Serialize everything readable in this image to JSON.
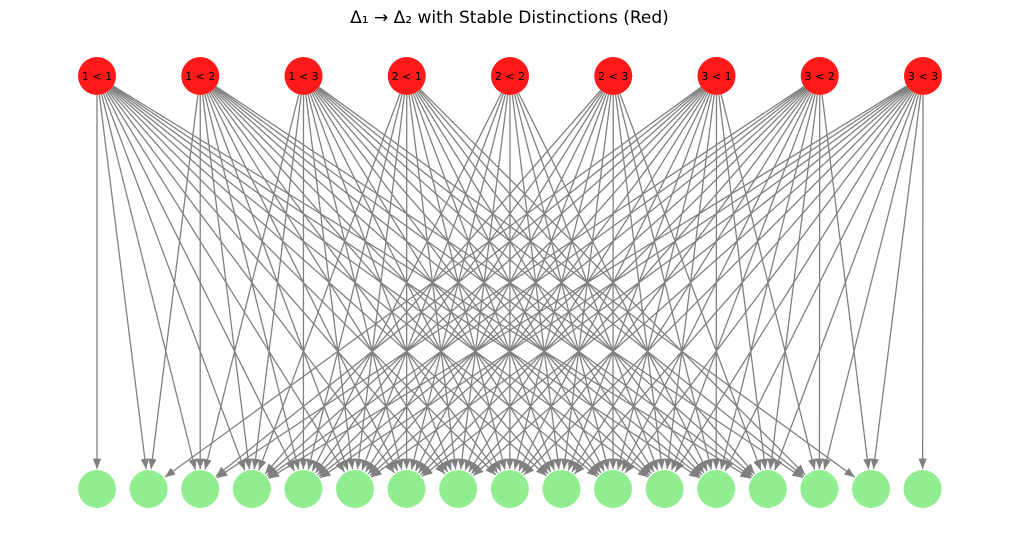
{
  "title": "Δ₁ → Δ₂ with Stable Distinctions (Red)",
  "colors": {
    "top_node": "#ff0000",
    "bottom_node": "#90ee90",
    "edge": "#808080",
    "label": "#000000"
  },
  "top_nodes": [
    {
      "label": "1 < 1"
    },
    {
      "label": "1 < 2"
    },
    {
      "label": "1 < 3"
    },
    {
      "label": "2 < 1"
    },
    {
      "label": "2 < 2"
    },
    {
      "label": "2 < 3"
    },
    {
      "label": "3 < 1"
    },
    {
      "label": "3 < 2"
    },
    {
      "label": "3 < 3"
    }
  ],
  "bottom_node_count": 17,
  "edges": [
    [
      0,
      0
    ],
    [
      0,
      1
    ],
    [
      0,
      2
    ],
    [
      0,
      3
    ],
    [
      0,
      4
    ],
    [
      0,
      5
    ],
    [
      0,
      6
    ],
    [
      0,
      7
    ],
    [
      0,
      8
    ],
    [
      0,
      9
    ],
    [
      0,
      10
    ],
    [
      0,
      11
    ],
    [
      0,
      12
    ],
    [
      0,
      13
    ],
    [
      1,
      1
    ],
    [
      1,
      2
    ],
    [
      1,
      3
    ],
    [
      1,
      4
    ],
    [
      1,
      5
    ],
    [
      1,
      6
    ],
    [
      1,
      7
    ],
    [
      1,
      8
    ],
    [
      1,
      9
    ],
    [
      1,
      10
    ],
    [
      1,
      11
    ],
    [
      1,
      12
    ],
    [
      1,
      13
    ],
    [
      1,
      14
    ],
    [
      2,
      2
    ],
    [
      2,
      3
    ],
    [
      2,
      4
    ],
    [
      2,
      5
    ],
    [
      2,
      6
    ],
    [
      2,
      7
    ],
    [
      2,
      8
    ],
    [
      2,
      9
    ],
    [
      2,
      10
    ],
    [
      2,
      11
    ],
    [
      2,
      12
    ],
    [
      2,
      13
    ],
    [
      2,
      14
    ],
    [
      2,
      15
    ],
    [
      3,
      3
    ],
    [
      3,
      4
    ],
    [
      3,
      5
    ],
    [
      3,
      6
    ],
    [
      3,
      7
    ],
    [
      3,
      8
    ],
    [
      3,
      9
    ],
    [
      3,
      10
    ],
    [
      3,
      11
    ],
    [
      3,
      12
    ],
    [
      3,
      13
    ],
    [
      3,
      14
    ],
    [
      4,
      4
    ],
    [
      4,
      5
    ],
    [
      4,
      6
    ],
    [
      4,
      7
    ],
    [
      4,
      8
    ],
    [
      4,
      9
    ],
    [
      4,
      10
    ],
    [
      4,
      11
    ],
    [
      4,
      12
    ],
    [
      5,
      3
    ],
    [
      5,
      4
    ],
    [
      5,
      5
    ],
    [
      5,
      6
    ],
    [
      5,
      7
    ],
    [
      5,
      8
    ],
    [
      5,
      9
    ],
    [
      5,
      10
    ],
    [
      5,
      11
    ],
    [
      5,
      12
    ],
    [
      5,
      13
    ],
    [
      6,
      1
    ],
    [
      6,
      2
    ],
    [
      6,
      3
    ],
    [
      6,
      4
    ],
    [
      6,
      5
    ],
    [
      6,
      6
    ],
    [
      6,
      7
    ],
    [
      6,
      8
    ],
    [
      6,
      9
    ],
    [
      6,
      10
    ],
    [
      6,
      11
    ],
    [
      6,
      12
    ],
    [
      6,
      13
    ],
    [
      6,
      14
    ],
    [
      7,
      2
    ],
    [
      7,
      3
    ],
    [
      7,
      4
    ],
    [
      7,
      5
    ],
    [
      7,
      6
    ],
    [
      7,
      7
    ],
    [
      7,
      8
    ],
    [
      7,
      9
    ],
    [
      7,
      10
    ],
    [
      7,
      11
    ],
    [
      7,
      12
    ],
    [
      7,
      13
    ],
    [
      7,
      14
    ],
    [
      7,
      15
    ],
    [
      8,
      3
    ],
    [
      8,
      4
    ],
    [
      8,
      5
    ],
    [
      8,
      6
    ],
    [
      8,
      7
    ],
    [
      8,
      8
    ],
    [
      8,
      9
    ],
    [
      8,
      10
    ],
    [
      8,
      11
    ],
    [
      8,
      12
    ],
    [
      8,
      13
    ],
    [
      8,
      14
    ],
    [
      8,
      15
    ],
    [
      8,
      16
    ]
  ]
}
